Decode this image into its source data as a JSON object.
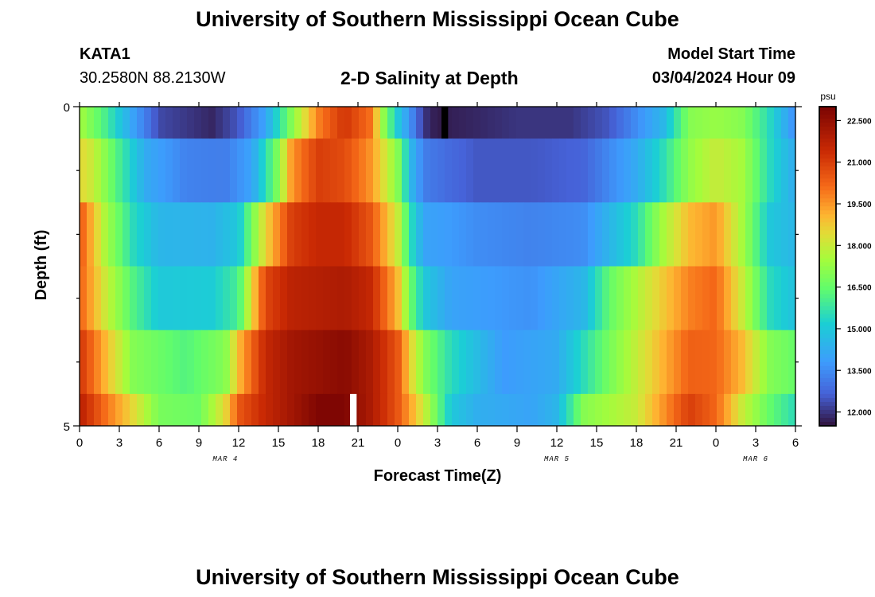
{
  "page": {
    "title": "University of Southern Mississippi Ocean Cube",
    "bottom_title": "University of Southern Mississippi Ocean Cube",
    "station": "KATA1",
    "coords": "30.2580N  88.2130W",
    "subtitle": "2-D Salinity at Depth",
    "model_label": "Model Start Time",
    "model_time": "03/04/2024 Hour 09"
  },
  "chart_data": {
    "type": "heatmap",
    "title": "2-D Salinity at Depth",
    "xlabel": "Forecast Time(Z)",
    "ylabel": "Depth (ft)",
    "ylim": [
      0,
      5
    ],
    "y_ticks": [
      "0",
      "5"
    ],
    "x_hours": 54,
    "x_ticks": [
      "0",
      "3",
      "6",
      "9",
      "12",
      "15",
      "18",
      "21",
      "0",
      "3",
      "6",
      "9",
      "12",
      "15",
      "18",
      "21",
      "0",
      "3",
      "6"
    ],
    "x_tick_hours": [
      0,
      3,
      6,
      9,
      12,
      15,
      18,
      21,
      24,
      27,
      30,
      33,
      36,
      39,
      42,
      45,
      48,
      51,
      54
    ],
    "date_labels": [
      {
        "label": "MAR 4",
        "hour": 11
      },
      {
        "label": "MAR 5",
        "hour": 36
      },
      {
        "label": "MAR 6",
        "hour": 51
      }
    ],
    "colorbar": {
      "unit": "psu",
      "min": 11.5,
      "max": 23.0,
      "ticks": [
        "12.000",
        "13.500",
        "15.000",
        "16.500",
        "18.000",
        "19.500",
        "21.000",
        "22.500"
      ],
      "tick_values": [
        12.0,
        13.5,
        15.0,
        16.5,
        18.0,
        19.5,
        21.0,
        22.5
      ]
    },
    "layers": [
      {
        "depth_range": [
          0,
          0.5
        ],
        "keys": [
          [
            0,
            17.5
          ],
          [
            2,
            16
          ],
          [
            4,
            14
          ],
          [
            6,
            12.3
          ],
          [
            10,
            11.8
          ],
          [
            12,
            12.5
          ],
          [
            14,
            14
          ],
          [
            16,
            17
          ],
          [
            18,
            19.8
          ],
          [
            20,
            21.2
          ],
          [
            22,
            20
          ],
          [
            23,
            17
          ],
          [
            24,
            15
          ],
          [
            25,
            13.5
          ],
          [
            26,
            12
          ],
          [
            27,
            11.6
          ],
          [
            28,
            11.7
          ],
          [
            30,
            11.8
          ],
          [
            33,
            12
          ],
          [
            37,
            12
          ],
          [
            40,
            12.5
          ],
          [
            44,
            14.5
          ],
          [
            46,
            17
          ],
          [
            48,
            17.3
          ],
          [
            50,
            17
          ],
          [
            52,
            15.5
          ],
          [
            54,
            13.5
          ]
        ],
        "flags": [
          {
            "from": 27.3,
            "to": 27.8,
            "color": "#000000"
          }
        ]
      },
      {
        "depth_range": [
          0.5,
          1.5
        ],
        "keys": [
          [
            0,
            18.5
          ],
          [
            1,
            18
          ],
          [
            3,
            16
          ],
          [
            5,
            14.2
          ],
          [
            8,
            13.3
          ],
          [
            11,
            13.2
          ],
          [
            13,
            14
          ],
          [
            15,
            17
          ],
          [
            16,
            19.5
          ],
          [
            18,
            21
          ],
          [
            20,
            20.7
          ],
          [
            22,
            19.5
          ],
          [
            24,
            17
          ],
          [
            25,
            14.5
          ],
          [
            26,
            13.2
          ],
          [
            28,
            12.8
          ],
          [
            30,
            12.5
          ],
          [
            34,
            12.5
          ],
          [
            38,
            12.7
          ],
          [
            42,
            14.2
          ],
          [
            44,
            15.5
          ],
          [
            46,
            17.2
          ],
          [
            48,
            18
          ],
          [
            50,
            17.5
          ],
          [
            52,
            15.5
          ],
          [
            54,
            14.2
          ]
        ],
        "flags": []
      },
      {
        "depth_range": [
          1.5,
          2.5
        ],
        "keys": [
          [
            0,
            20.5
          ],
          [
            2,
            17.5
          ],
          [
            4,
            15.5
          ],
          [
            6,
            14.5
          ],
          [
            10,
            14.4
          ],
          [
            12,
            15
          ],
          [
            14,
            18.5
          ],
          [
            16,
            21
          ],
          [
            18,
            21.5
          ],
          [
            20,
            21.5
          ],
          [
            22,
            20.5
          ],
          [
            24,
            18
          ],
          [
            25,
            15.5
          ],
          [
            26,
            14
          ],
          [
            28,
            13.8
          ],
          [
            30,
            13.5
          ],
          [
            34,
            13.3
          ],
          [
            38,
            13.5
          ],
          [
            42,
            15.5
          ],
          [
            44,
            17.5
          ],
          [
            46,
            19
          ],
          [
            48,
            19.5
          ],
          [
            50,
            17.5
          ],
          [
            52,
            15
          ],
          [
            54,
            14.5
          ]
        ],
        "flags": []
      },
      {
        "depth_range": [
          2.5,
          3.5
        ],
        "keys": [
          [
            0,
            20.3
          ],
          [
            2,
            18
          ],
          [
            4,
            16.2
          ],
          [
            6,
            15
          ],
          [
            10,
            15.1
          ],
          [
            12,
            16
          ],
          [
            13,
            18.5
          ],
          [
            14,
            20.8
          ],
          [
            16,
            21.7
          ],
          [
            20,
            22
          ],
          [
            22,
            21.5
          ],
          [
            24,
            19
          ],
          [
            25,
            16.5
          ],
          [
            26,
            15
          ],
          [
            28,
            14
          ],
          [
            34,
            13.6
          ],
          [
            38,
            14.5
          ],
          [
            40,
            16.5
          ],
          [
            43,
            18.2
          ],
          [
            46,
            19.8
          ],
          [
            48,
            20.2
          ],
          [
            50,
            18
          ],
          [
            52,
            15.5
          ],
          [
            54,
            14.8
          ]
        ],
        "flags": []
      },
      {
        "depth_range": [
          3.5,
          4.5
        ],
        "keys": [
          [
            0,
            21.2
          ],
          [
            2,
            19
          ],
          [
            4,
            17
          ],
          [
            8,
            16.2
          ],
          [
            11,
            17
          ],
          [
            12,
            19
          ],
          [
            14,
            21.5
          ],
          [
            16,
            22.2
          ],
          [
            20,
            22.7
          ],
          [
            22,
            22
          ],
          [
            24,
            20.5
          ],
          [
            25,
            18.5
          ],
          [
            26,
            17
          ],
          [
            28,
            15.5
          ],
          [
            32,
            13.8
          ],
          [
            36,
            14.2
          ],
          [
            38,
            15.5
          ],
          [
            40,
            16.8
          ],
          [
            43,
            18.5
          ],
          [
            46,
            20.3
          ],
          [
            48,
            20.2
          ],
          [
            50,
            19
          ],
          [
            52,
            17
          ],
          [
            54,
            16.5
          ]
        ],
        "flags": []
      },
      {
        "depth_range": [
          4.5,
          5
        ],
        "keys": [
          [
            0,
            21.8
          ],
          [
            2,
            20
          ],
          [
            4,
            18.5
          ],
          [
            6,
            16.8
          ],
          [
            9,
            16.6
          ],
          [
            11,
            18.5
          ],
          [
            12,
            20.5
          ],
          [
            14,
            21.5
          ],
          [
            16,
            22.2
          ],
          [
            18,
            22.9
          ],
          [
            20,
            22.9
          ],
          [
            22,
            22
          ],
          [
            24,
            20.5
          ],
          [
            26,
            18
          ],
          [
            27,
            16.5
          ],
          [
            28,
            15
          ],
          [
            30,
            14.3
          ],
          [
            34,
            14
          ],
          [
            36,
            14.5
          ],
          [
            38,
            17
          ],
          [
            40,
            17.5
          ],
          [
            42,
            18
          ],
          [
            44,
            19.5
          ],
          [
            46,
            21
          ],
          [
            48,
            20.2
          ],
          [
            50,
            18
          ],
          [
            52,
            16.5
          ],
          [
            54,
            15.5
          ]
        ],
        "flags": [
          {
            "from": 20.4,
            "to": 20.9,
            "color": "#ffffff"
          }
        ]
      }
    ]
  }
}
